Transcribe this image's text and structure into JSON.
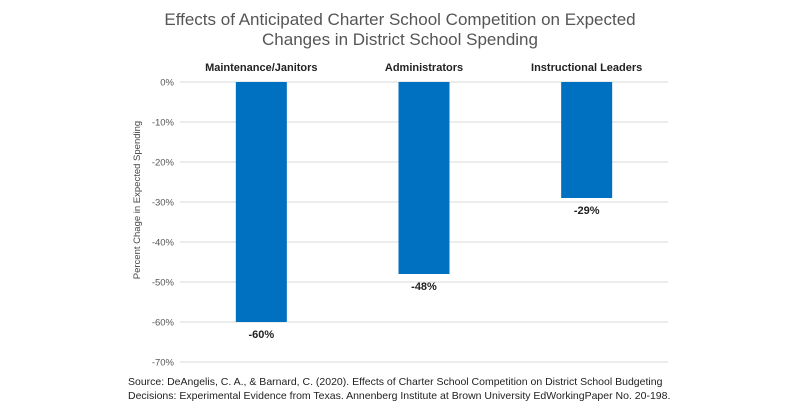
{
  "chart_data": {
    "type": "bar",
    "title_lines": [
      "Effects of Anticipated Charter School Competition on Expected",
      "Changes in District School Spending"
    ],
    "categories": [
      "Maintenance/Janitors",
      "Administrators",
      "Instructional Leaders"
    ],
    "values": [
      -60,
      -48,
      -29
    ],
    "value_labels": [
      "-60%",
      "-48%",
      "-29%"
    ],
    "ylabel": "Percent Chage in Expected Spending",
    "xlabel": "",
    "ylim": [
      -70,
      0
    ],
    "yticks": [
      0,
      -10,
      -20,
      -30,
      -40,
      -50,
      -60,
      -70
    ],
    "ytick_labels": [
      "0%",
      "-10%",
      "-20%",
      "-30%",
      "-40%",
      "-50%",
      "-60%",
      "-70%"
    ],
    "grid": true,
    "legend": "none",
    "bar_color": "#0070C0"
  },
  "source_lines": [
    "Source: DeAngelis, C. A., & Barnard, C. (2020). Effects of Charter School Competition on District School Budgeting",
    "Decisions: Experimental Evidence from Texas. Annenberg  Institute at Brown University EdWorkingPaper No. 20-198."
  ]
}
